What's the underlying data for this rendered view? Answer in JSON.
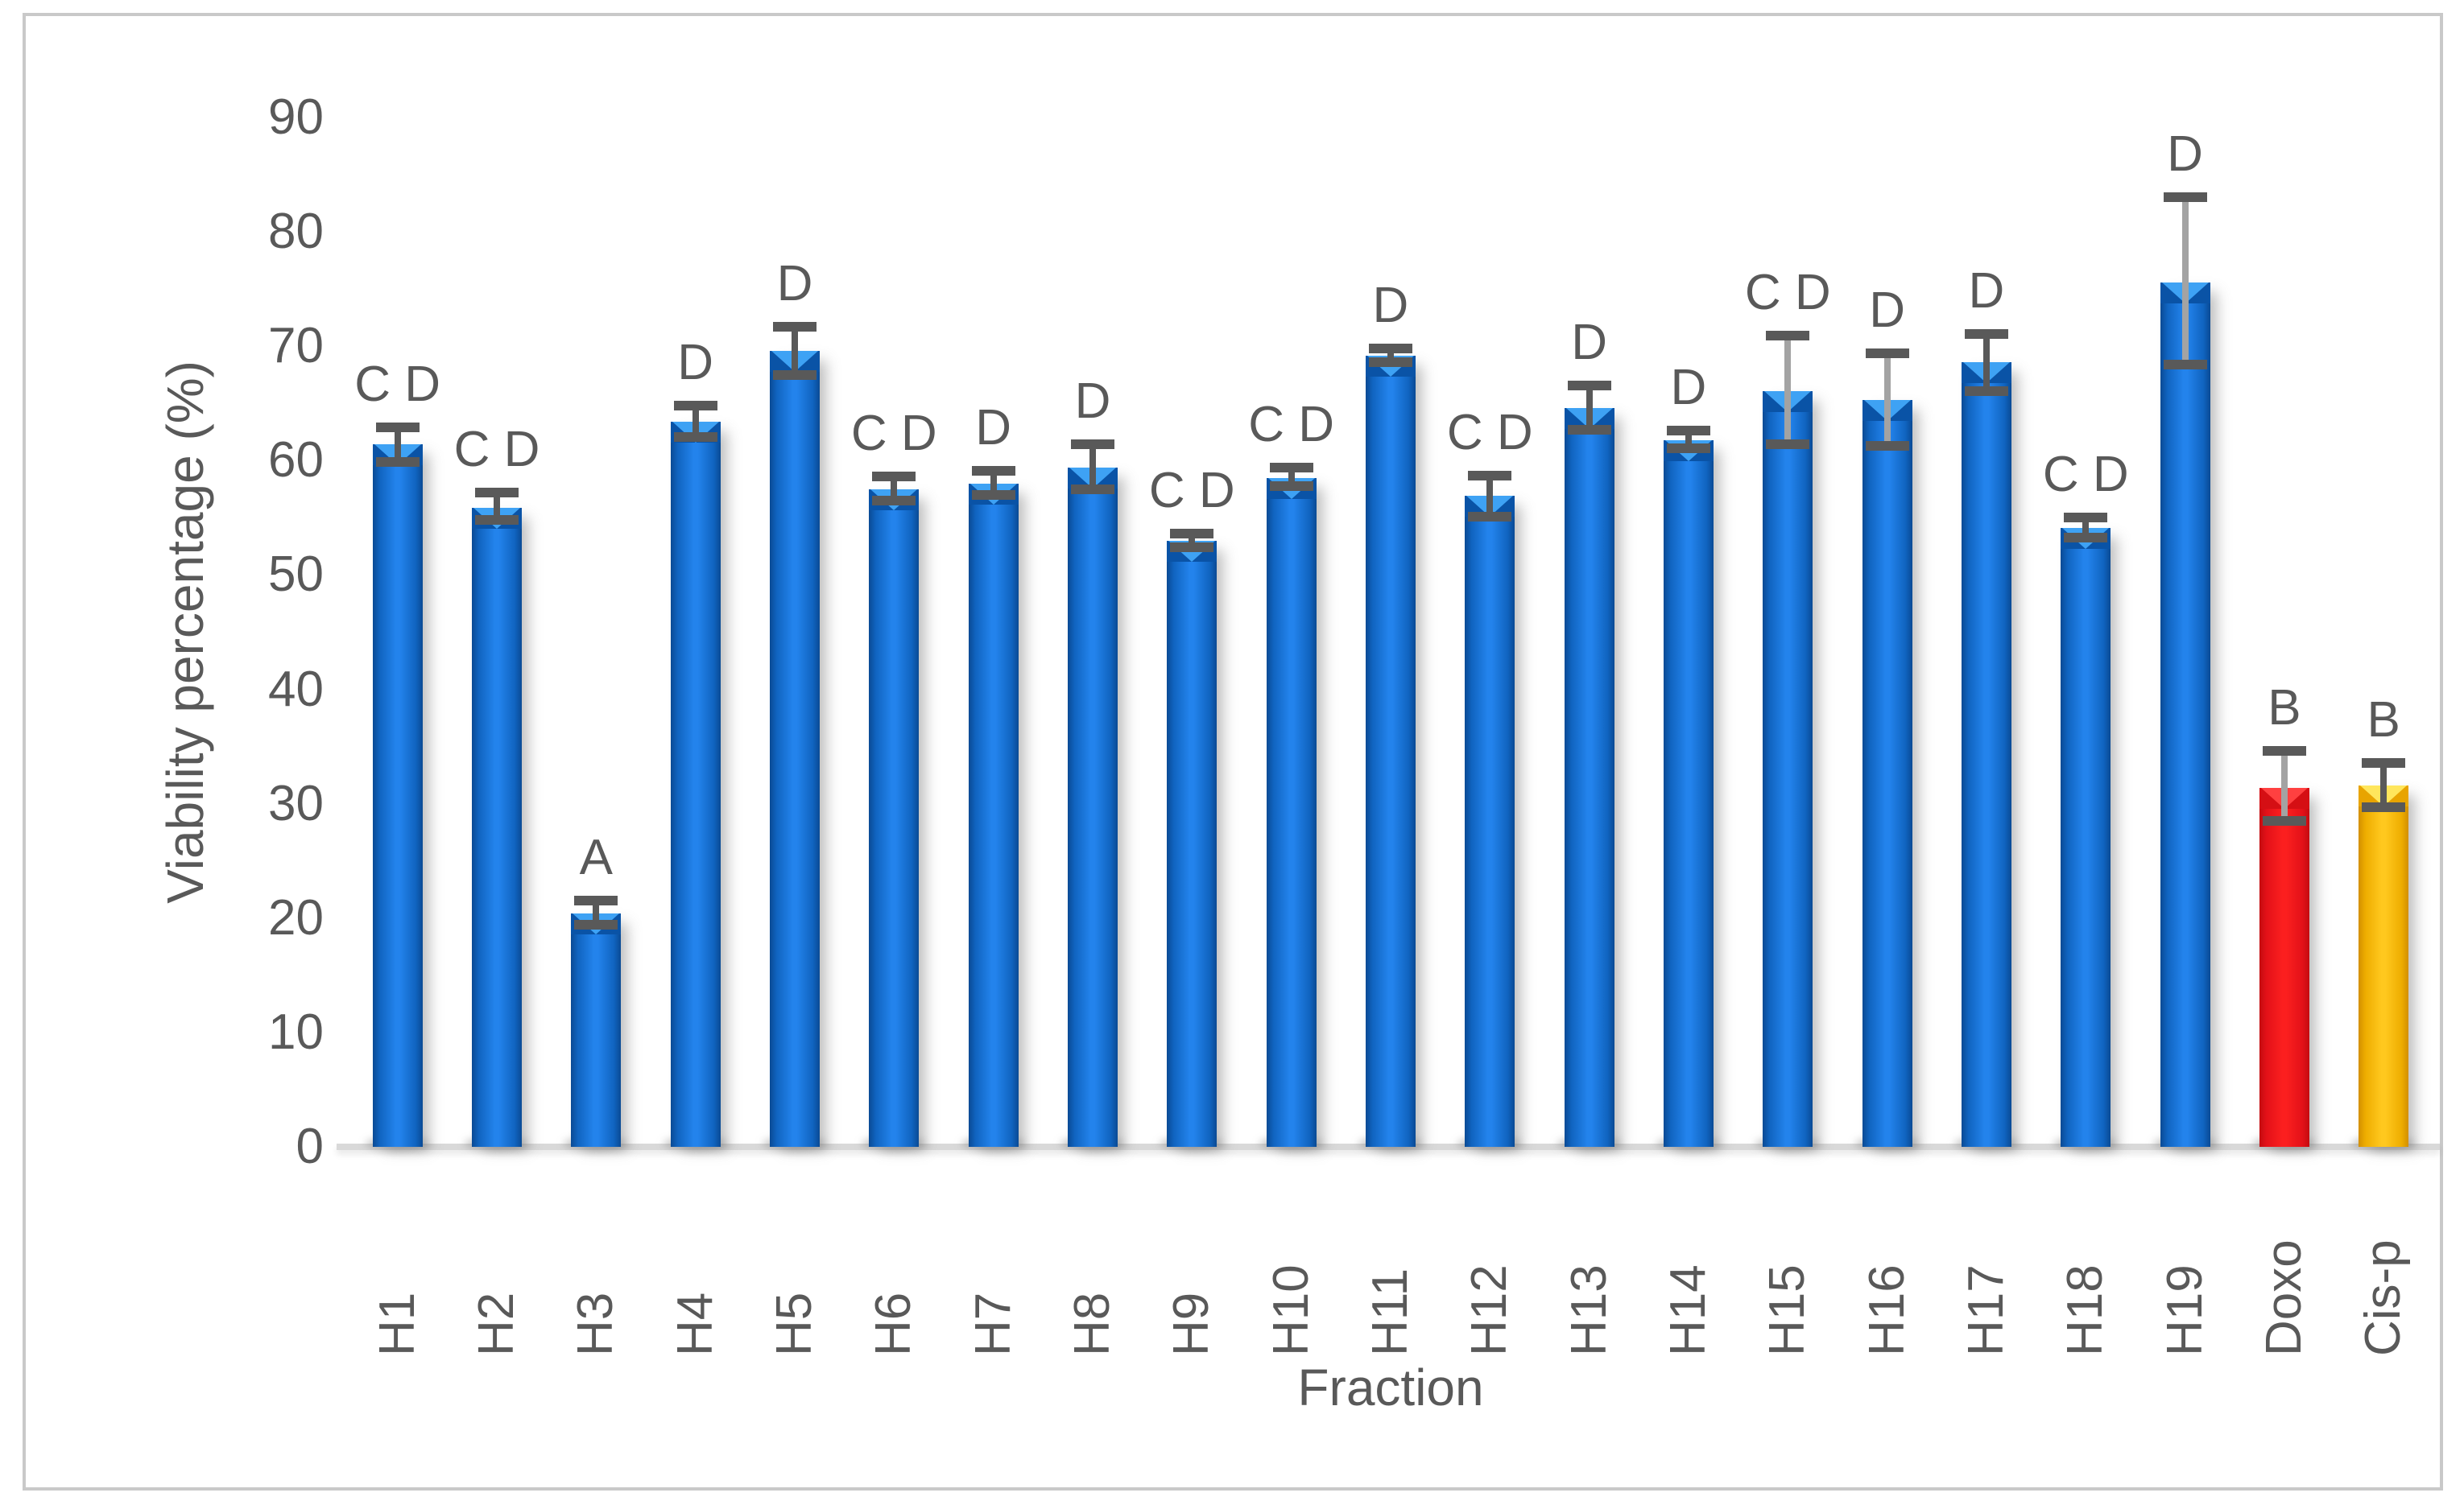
{
  "figure": {
    "background": "#ffffff",
    "border_color": "#c9c9c9"
  },
  "chart_data": {
    "type": "bar",
    "title": "",
    "xlabel": "Fraction",
    "ylabel": "Viability percentage (%)",
    "ylim": [
      0,
      90
    ],
    "ytick_step": 10,
    "ytick_labels": [
      "0",
      "10",
      "20",
      "30",
      "40",
      "50",
      "60",
      "70",
      "80",
      "90"
    ],
    "grid": false,
    "legend_position": "none",
    "categories": [
      "H1",
      "H2",
      "H3",
      "H4",
      "H5",
      "H6",
      "H7",
      "H8",
      "H9",
      "H10",
      "H11",
      "H12",
      "H13",
      "H14",
      "H15",
      "H16",
      "H17",
      "H18",
      "H19",
      "Doxo",
      "Cis-p"
    ],
    "values": [
      61.4,
      55.9,
      20.4,
      63.4,
      69.6,
      57.5,
      58.0,
      59.4,
      53.0,
      58.5,
      69.2,
      56.9,
      64.6,
      61.8,
      66.1,
      65.3,
      68.6,
      54.1,
      75.6,
      31.4,
      31.6
    ],
    "error_up": [
      1.5,
      1.3,
      1.1,
      1.4,
      2.1,
      1.1,
      1.1,
      2.0,
      0.6,
      0.9,
      0.6,
      1.8,
      2.0,
      0.8,
      4.8,
      4.1,
      2.5,
      0.9,
      7.4,
      3.2,
      2.0
    ],
    "error_down": [
      1.5,
      1.1,
      1.0,
      1.3,
      2.1,
      1.0,
      1.0,
      1.9,
      0.6,
      0.7,
      0.6,
      1.8,
      1.9,
      0.7,
      4.7,
      4.0,
      2.5,
      0.8,
      7.2,
      2.9,
      1.9
    ],
    "sig_labels": [
      "C D",
      "C D",
      "A",
      "D",
      "D",
      "C D",
      "D",
      "D",
      "C D",
      "C D",
      "D",
      "C D",
      "D",
      "D",
      "C D",
      "D",
      "D",
      "C D",
      "D",
      "B",
      "B"
    ],
    "bar_colors": [
      "blue",
      "blue",
      "blue",
      "blue",
      "blue",
      "blue",
      "blue",
      "blue",
      "blue",
      "blue",
      "blue",
      "blue",
      "blue",
      "blue",
      "blue",
      "blue",
      "blue",
      "blue",
      "blue",
      "red",
      "gold"
    ],
    "error_line_light": [
      false,
      false,
      false,
      false,
      false,
      false,
      false,
      false,
      false,
      false,
      false,
      false,
      false,
      false,
      true,
      true,
      false,
      false,
      true,
      true,
      false
    ]
  },
  "styles": {
    "blue": {
      "edge": "#0a4a94",
      "mid": "#1064c0",
      "center": "#2383ec",
      "cap": "#0a53a6",
      "tri": "#3ea2f4"
    },
    "red": {
      "edge": "#c40b10",
      "mid": "#e31118",
      "center": "#fb1f1f",
      "cap": "#d50f14",
      "tri": "#ff4040"
    },
    "gold": {
      "edge": "#d28f00",
      "mid": "#eead00",
      "center": "#ffc81e",
      "cap": "#e8a400",
      "tri": "#ffe65c"
    },
    "error_dark": "#595959",
    "error_light": "#a3a3a3",
    "text": "#595959",
    "axis_line": "#d9d9d9"
  }
}
